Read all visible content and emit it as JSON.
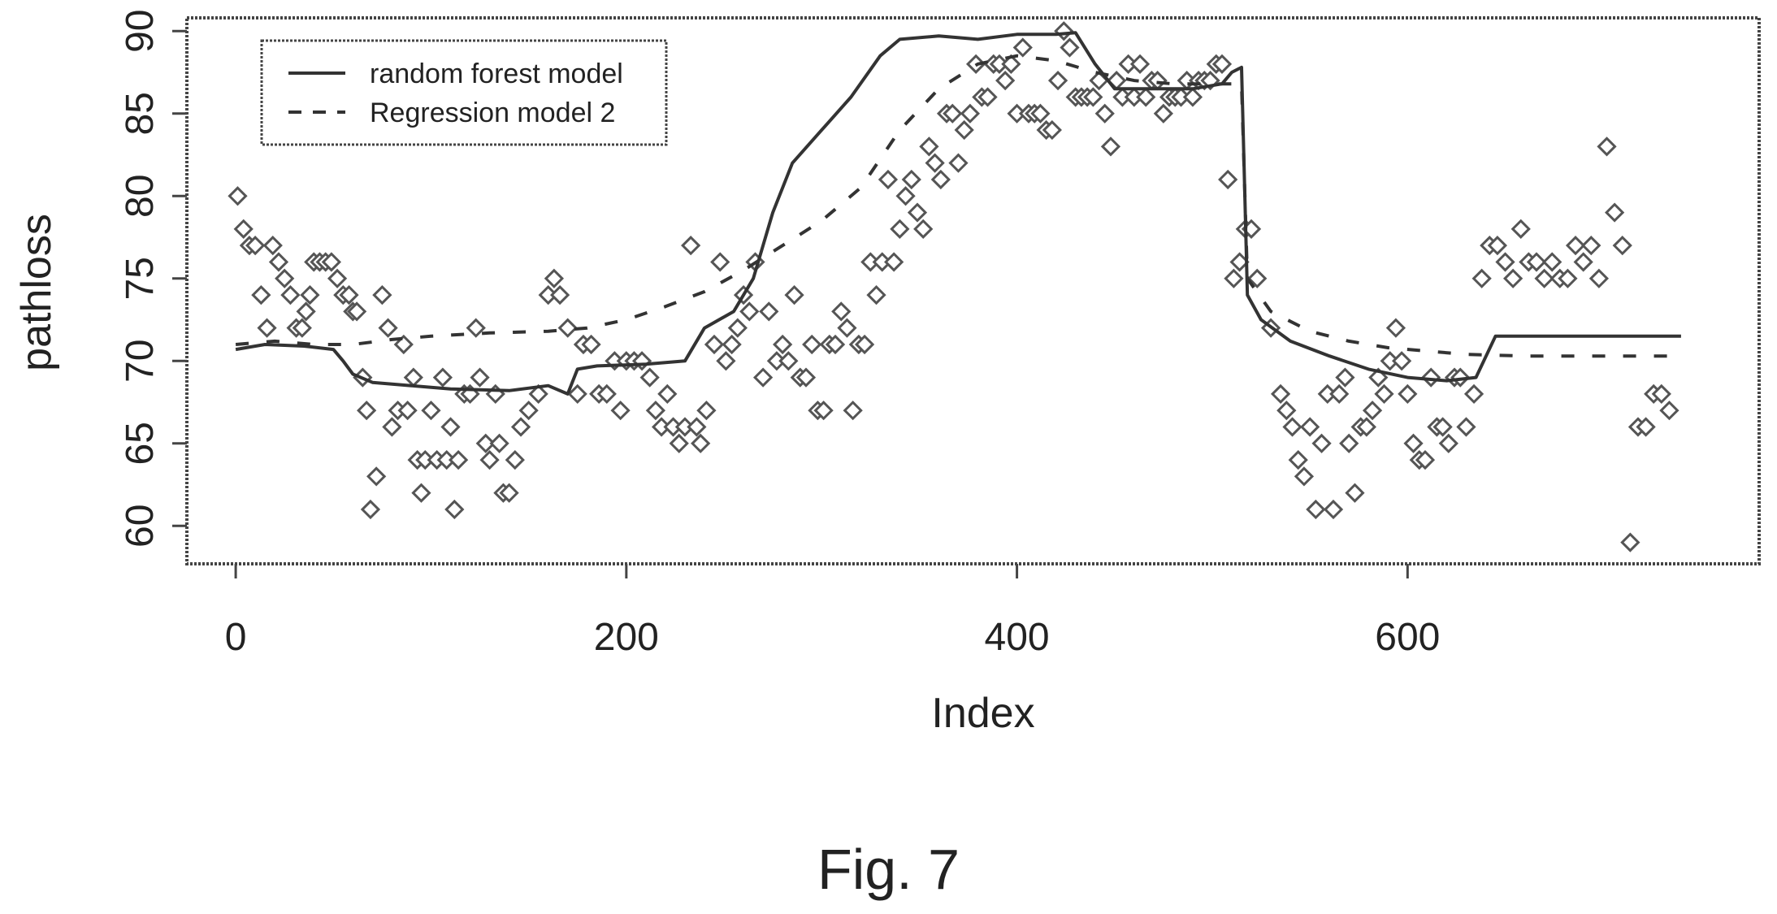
{
  "caption": "Fig. 7",
  "chart_data": {
    "type": "scatter",
    "title": "",
    "xlabel": "Index",
    "ylabel": "pathloss",
    "xlim": [
      -25,
      780
    ],
    "ylim": [
      57.7,
      90.8
    ],
    "x_ticks": [
      "0",
      "200",
      "400",
      "600"
    ],
    "y_ticks": [
      "60",
      "65",
      "70",
      "75",
      "80",
      "85",
      "90"
    ],
    "grid": false,
    "legend_position": "top-left",
    "legend": [
      {
        "label": "random forest model",
        "style": "solid"
      },
      {
        "label": "Regression model 2",
        "style": "dashed"
      }
    ],
    "observed_points": [
      [
        1,
        80
      ],
      [
        4,
        78
      ],
      [
        7,
        77
      ],
      [
        10,
        77
      ],
      [
        13,
        74
      ],
      [
        16,
        72
      ],
      [
        19,
        77
      ],
      [
        22,
        76
      ],
      [
        25,
        75
      ],
      [
        28,
        74
      ],
      [
        31,
        72
      ],
      [
        34,
        72
      ],
      [
        36,
        73
      ],
      [
        38,
        74
      ],
      [
        40,
        76
      ],
      [
        43,
        76
      ],
      [
        46,
        76
      ],
      [
        49,
        76
      ],
      [
        52,
        75
      ],
      [
        55,
        74
      ],
      [
        58,
        74
      ],
      [
        60,
        73
      ],
      [
        62,
        73
      ],
      [
        65,
        69
      ],
      [
        67,
        67
      ],
      [
        69,
        61
      ],
      [
        72,
        63
      ],
      [
        75,
        74
      ],
      [
        78,
        72
      ],
      [
        80,
        66
      ],
      [
        83,
        67
      ],
      [
        86,
        71
      ],
      [
        88,
        67
      ],
      [
        91,
        69
      ],
      [
        93,
        64
      ],
      [
        95,
        62
      ],
      [
        97,
        64
      ],
      [
        100,
        67
      ],
      [
        103,
        64
      ],
      [
        106,
        69
      ],
      [
        108,
        64
      ],
      [
        110,
        66
      ],
      [
        112,
        61
      ],
      [
        114,
        64
      ],
      [
        117,
        68
      ],
      [
        120,
        68
      ],
      [
        123,
        72
      ],
      [
        125,
        69
      ],
      [
        128,
        65
      ],
      [
        130,
        64
      ],
      [
        133,
        68
      ],
      [
        135,
        65
      ],
      [
        137,
        62
      ],
      [
        140,
        62
      ],
      [
        143,
        64
      ],
      [
        146,
        66
      ],
      [
        150,
        67
      ],
      [
        155,
        68
      ],
      [
        160,
        74
      ],
      [
        163,
        75
      ],
      [
        166,
        74
      ],
      [
        170,
        72
      ],
      [
        175,
        68
      ],
      [
        178,
        71
      ],
      [
        182,
        71
      ],
      [
        186,
        68
      ],
      [
        190,
        68
      ],
      [
        194,
        70
      ],
      [
        197,
        67
      ],
      [
        200,
        70
      ],
      [
        204,
        70
      ],
      [
        208,
        70
      ],
      [
        212,
        69
      ],
      [
        215,
        67
      ],
      [
        218,
        66
      ],
      [
        221,
        68
      ],
      [
        224,
        66
      ],
      [
        227,
        65
      ],
      [
        230,
        66
      ],
      [
        233,
        77
      ],
      [
        236,
        66
      ],
      [
        238,
        65
      ],
      [
        241,
        67
      ],
      [
        245,
        71
      ],
      [
        248,
        76
      ],
      [
        251,
        70
      ],
      [
        254,
        71
      ],
      [
        257,
        72
      ],
      [
        260,
        74
      ],
      [
        263,
        73
      ],
      [
        266,
        76
      ],
      [
        270,
        69
      ],
      [
        273,
        73
      ],
      [
        277,
        70
      ],
      [
        280,
        71
      ],
      [
        283,
        70
      ],
      [
        286,
        74
      ],
      [
        289,
        69
      ],
      [
        292,
        69
      ],
      [
        295,
        71
      ],
      [
        298,
        67
      ],
      [
        301,
        67
      ],
      [
        304,
        71
      ],
      [
        307,
        71
      ],
      [
        310,
        73
      ],
      [
        313,
        72
      ],
      [
        316,
        67
      ],
      [
        319,
        71
      ],
      [
        322,
        71
      ],
      [
        325,
        76
      ],
      [
        328,
        74
      ],
      [
        331,
        76
      ],
      [
        334,
        81
      ],
      [
        337,
        76
      ],
      [
        340,
        78
      ],
      [
        343,
        80
      ],
      [
        346,
        81
      ],
      [
        349,
        79
      ],
      [
        352,
        78
      ],
      [
        355,
        83
      ],
      [
        358,
        82
      ],
      [
        361,
        81
      ],
      [
        364,
        85
      ],
      [
        367,
        85
      ],
      [
        370,
        82
      ],
      [
        373,
        84
      ],
      [
        376,
        85
      ],
      [
        379,
        88
      ],
      [
        382,
        86
      ],
      [
        385,
        86
      ],
      [
        388,
        88
      ],
      [
        391,
        88
      ],
      [
        394,
        87
      ],
      [
        397,
        88
      ],
      [
        400,
        85
      ],
      [
        403,
        89
      ],
      [
        406,
        85
      ],
      [
        409,
        85
      ],
      [
        412,
        85
      ],
      [
        415,
        84
      ],
      [
        418,
        84
      ],
      [
        421,
        87
      ],
      [
        424,
        90
      ],
      [
        427,
        89
      ],
      [
        430,
        86
      ],
      [
        433,
        86
      ],
      [
        436,
        86
      ],
      [
        439,
        86
      ],
      [
        442,
        87
      ],
      [
        445,
        85
      ],
      [
        448,
        83
      ],
      [
        451,
        87
      ],
      [
        454,
        86
      ],
      [
        457,
        88
      ],
      [
        460,
        86
      ],
      [
        463,
        88
      ],
      [
        466,
        86
      ],
      [
        469,
        87
      ],
      [
        472,
        87
      ],
      [
        475,
        85
      ],
      [
        478,
        86
      ],
      [
        481,
        86
      ],
      [
        484,
        86
      ],
      [
        487,
        87
      ],
      [
        490,
        86
      ],
      [
        493,
        87
      ],
      [
        496,
        87
      ],
      [
        499,
        87
      ],
      [
        502,
        88
      ],
      [
        505,
        88
      ],
      [
        508,
        81
      ],
      [
        511,
        75
      ],
      [
        514,
        76
      ],
      [
        517,
        78
      ],
      [
        520,
        78
      ],
      [
        523,
        75
      ],
      [
        530,
        72
      ],
      [
        535,
        68
      ],
      [
        538,
        67
      ],
      [
        541,
        66
      ],
      [
        544,
        64
      ],
      [
        547,
        63
      ],
      [
        550,
        66
      ],
      [
        553,
        61
      ],
      [
        556,
        65
      ],
      [
        559,
        68
      ],
      [
        562,
        61
      ],
      [
        565,
        68
      ],
      [
        568,
        69
      ],
      [
        570,
        65
      ],
      [
        573,
        62
      ],
      [
        576,
        66
      ],
      [
        579,
        66
      ],
      [
        582,
        67
      ],
      [
        585,
        69
      ],
      [
        588,
        68
      ],
      [
        591,
        70
      ],
      [
        594,
        72
      ],
      [
        597,
        70
      ],
      [
        600,
        68
      ],
      [
        603,
        65
      ],
      [
        606,
        64
      ],
      [
        609,
        64
      ],
      [
        612,
        69
      ],
      [
        615,
        66
      ],
      [
        618,
        66
      ],
      [
        621,
        65
      ],
      [
        624,
        69
      ],
      [
        627,
        69
      ],
      [
        630,
        66
      ],
      [
        634,
        68
      ],
      [
        638,
        75
      ],
      [
        642,
        77
      ],
      [
        646,
        77
      ],
      [
        650,
        76
      ],
      [
        654,
        75
      ],
      [
        658,
        78
      ],
      [
        662,
        76
      ],
      [
        666,
        76
      ],
      [
        670,
        75
      ],
      [
        674,
        76
      ],
      [
        678,
        75
      ],
      [
        682,
        75
      ],
      [
        686,
        77
      ],
      [
        690,
        76
      ],
      [
        694,
        77
      ],
      [
        698,
        75
      ],
      [
        702,
        83
      ],
      [
        706,
        79
      ],
      [
        710,
        77
      ],
      [
        714,
        59
      ],
      [
        718,
        66
      ],
      [
        722,
        66
      ],
      [
        726,
        68
      ],
      [
        730,
        68
      ],
      [
        734,
        67
      ]
    ],
    "series": [
      {
        "name": "random forest model",
        "style": "solid",
        "points": [
          [
            0,
            70.7
          ],
          [
            15,
            71
          ],
          [
            35,
            70.9
          ],
          [
            50,
            70.7
          ],
          [
            55,
            70
          ],
          [
            60,
            69.2
          ],
          [
            70,
            68.7
          ],
          [
            90,
            68.5
          ],
          [
            110,
            68.3
          ],
          [
            140,
            68.2
          ],
          [
            160,
            68.5
          ],
          [
            170,
            68
          ],
          [
            175,
            69.5
          ],
          [
            185,
            69.7
          ],
          [
            210,
            69.8
          ],
          [
            230,
            70
          ],
          [
            240,
            72
          ],
          [
            255,
            73
          ],
          [
            265,
            75
          ],
          [
            275,
            79
          ],
          [
            285,
            82
          ],
          [
            300,
            84
          ],
          [
            315,
            86
          ],
          [
            330,
            88.5
          ],
          [
            340,
            89.5
          ],
          [
            360,
            89.7
          ],
          [
            380,
            89.5
          ],
          [
            400,
            89.8
          ],
          [
            420,
            89.8
          ],
          [
            430,
            89.9
          ],
          [
            440,
            88
          ],
          [
            450,
            86.5
          ],
          [
            470,
            86.5
          ],
          [
            490,
            86.5
          ],
          [
            505,
            86.8
          ],
          [
            510,
            87.5
          ],
          [
            515,
            87.8
          ],
          [
            518,
            74
          ],
          [
            525,
            72.5
          ],
          [
            540,
            71.2
          ],
          [
            560,
            70.3
          ],
          [
            580,
            69.5
          ],
          [
            600,
            69
          ],
          [
            620,
            68.8
          ],
          [
            635,
            69
          ],
          [
            645,
            71.5
          ],
          [
            700,
            71.5
          ],
          [
            740,
            71.5
          ]
        ]
      },
      {
        "name": "Regression model 2",
        "style": "dashed",
        "points": [
          [
            0,
            71
          ],
          [
            20,
            71.2
          ],
          [
            40,
            71
          ],
          [
            60,
            71
          ],
          [
            80,
            71.3
          ],
          [
            100,
            71.5
          ],
          [
            130,
            71.7
          ],
          [
            160,
            71.8
          ],
          [
            180,
            72
          ],
          [
            200,
            72.5
          ],
          [
            220,
            73.3
          ],
          [
            240,
            74.2
          ],
          [
            260,
            75.5
          ],
          [
            280,
            77
          ],
          [
            300,
            78.5
          ],
          [
            320,
            80.5
          ],
          [
            340,
            84
          ],
          [
            360,
            86.5
          ],
          [
            380,
            88
          ],
          [
            400,
            88.5
          ],
          [
            420,
            88.2
          ],
          [
            440,
            87.5
          ],
          [
            460,
            87
          ],
          [
            480,
            86.8
          ],
          [
            500,
            86.8
          ],
          [
            515,
            86.8
          ],
          [
            518,
            75
          ],
          [
            530,
            73
          ],
          [
            550,
            71.8
          ],
          [
            570,
            71.2
          ],
          [
            590,
            70.8
          ],
          [
            610,
            70.6
          ],
          [
            630,
            70.4
          ],
          [
            660,
            70.3
          ],
          [
            700,
            70.3
          ],
          [
            740,
            70.3
          ]
        ]
      }
    ]
  }
}
